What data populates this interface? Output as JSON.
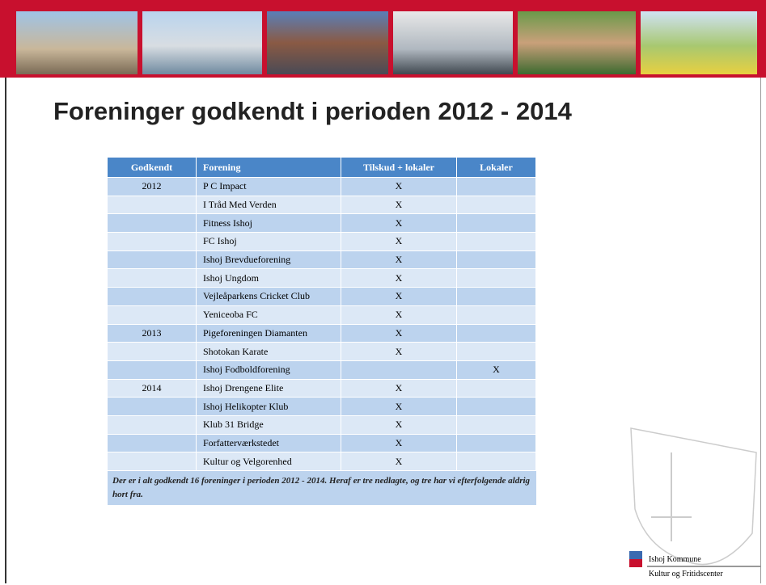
{
  "header": {
    "title": "Foreninger godkendt i perioden 2012 - 2014"
  },
  "table": {
    "columns": [
      "Godkendt",
      "Forening",
      "Tilskud + lokaler",
      "Lokaler"
    ],
    "rows": [
      [
        "2012",
        "P C Impact",
        "X",
        null
      ],
      [
        null,
        "I Tråd Med Verden",
        "X",
        null
      ],
      [
        null,
        "Fitness Ishoj",
        "X",
        null
      ],
      [
        null,
        "FC Ishoj",
        "X",
        null
      ],
      [
        null,
        "Ishoj Brevdueforening",
        "X",
        null
      ],
      [
        null,
        "Ishoj Ungdom",
        "X",
        null
      ],
      [
        null,
        "Vejleåparkens Cricket Club",
        "X",
        null
      ],
      [
        null,
        "Yeniceoba FC",
        "X",
        null
      ],
      [
        "2013",
        "Pigeforeningen Diamanten",
        "X",
        null
      ],
      [
        null,
        "Shotokan Karate",
        "X",
        null
      ],
      [
        null,
        "Ishoj Fodboldforening",
        null,
        "X"
      ],
      [
        "2014",
        "Ishoj Drengene Elite",
        "X",
        null
      ],
      [
        null,
        "Ishoj Helikopter Klub",
        "X",
        null
      ],
      [
        null,
        "Klub 31 Bridge",
        "X",
        null
      ],
      [
        null,
        "Forfatterværkstedet",
        "X",
        null
      ],
      [
        null,
        "Kultur og Velgorenhed",
        "X",
        null
      ]
    ],
    "note": "Der er i alt godkendt 16 foreninger i perioden 2012 - 2014. Heraf er tre nedlagte, og tre har vi efterfolgende aldrig hort fra."
  },
  "logo": {
    "name": "Ishoj Kommune",
    "department": "Kultur og Fritidscenter"
  }
}
